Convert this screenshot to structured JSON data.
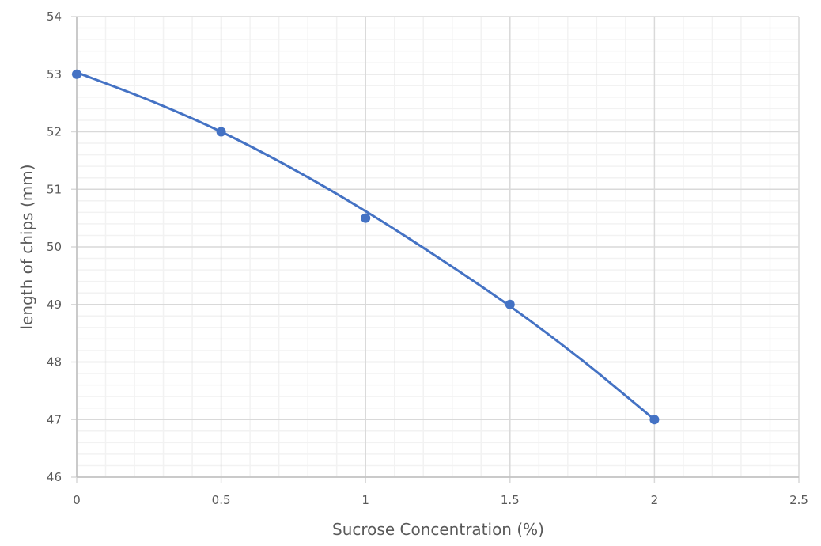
{
  "chart_data": {
    "type": "scatter",
    "title": "",
    "xlabel": "Sucrose Concentration (%)",
    "ylabel": "length of chips (mm)",
    "xlim": [
      0,
      2.5
    ],
    "ylim": [
      46,
      54
    ],
    "x_ticks": [
      "0",
      "0.5",
      "1",
      "1.5",
      "2",
      "2.5"
    ],
    "y_ticks": [
      "46",
      "47",
      "48",
      "49",
      "50",
      "51",
      "52",
      "53",
      "54"
    ],
    "grid": {
      "major": true,
      "minor": true
    },
    "legend": null,
    "series": [
      {
        "name": "length of chips",
        "x": [
          0,
          0.5,
          1,
          1.5,
          2
        ],
        "y": [
          53,
          52,
          50.5,
          49,
          47
        ],
        "marker": "circle",
        "line": "smoothed polynomial trend",
        "color": "#4472C4"
      }
    ],
    "trendline": {
      "type": "polynomial",
      "order": 2,
      "points_x": [
        0,
        0.25,
        0.5,
        0.75,
        1,
        1.25,
        1.5,
        1.75,
        2
      ],
      "points_y": [
        53.03,
        52.55,
        52.0,
        51.35,
        50.62,
        49.82,
        48.97,
        48.03,
        47.0
      ]
    }
  },
  "colors": {
    "series": "#4472C4",
    "major_grid": "#d9d9d9",
    "minor_grid": "#f2f2f2",
    "text": "#595959"
  }
}
